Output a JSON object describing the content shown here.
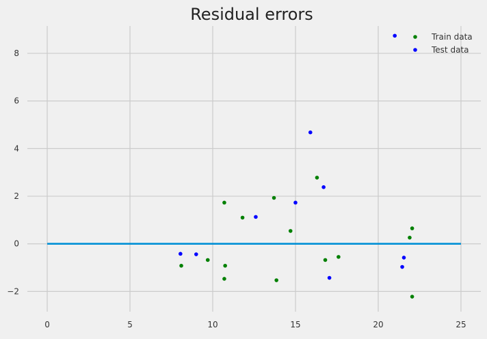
{
  "chart_data": {
    "type": "scatter",
    "title": "Residual errors",
    "xlabel": "",
    "ylabel": "",
    "xlim": [
      -1.2,
      26.2
    ],
    "ylim": [
      -2.85,
      9.15
    ],
    "xticks": [
      0,
      5,
      10,
      15,
      20,
      25
    ],
    "xtick_labels": [
      "0",
      "5",
      "10",
      "15",
      "20",
      "25"
    ],
    "yticks": [
      -2,
      0,
      2,
      4,
      6,
      8
    ],
    "ytick_labels": [
      "−2",
      "0",
      "2",
      "4",
      "6",
      "8"
    ],
    "grid": true,
    "legend_position": "top-right",
    "hline": {
      "y": 0,
      "x_from": 0,
      "x_to": 25,
      "color": "#008fd5"
    },
    "series": [
      {
        "name": "Train data",
        "color": "#008000",
        "points": [
          [
            8.1,
            -0.92
          ],
          [
            9.7,
            -0.68
          ],
          [
            10.7,
            1.73
          ],
          [
            10.75,
            -0.92
          ],
          [
            10.7,
            -1.47
          ],
          [
            11.8,
            1.1
          ],
          [
            13.7,
            1.93
          ],
          [
            13.85,
            -1.53
          ],
          [
            14.7,
            0.54
          ],
          [
            16.3,
            2.78
          ],
          [
            16.8,
            -0.68
          ],
          [
            17.6,
            -0.55
          ],
          [
            21.9,
            0.26
          ],
          [
            22.05,
            0.65
          ],
          [
            22.05,
            -2.22
          ]
        ]
      },
      {
        "name": "Test data",
        "color": "#0000ff",
        "points": [
          [
            8.05,
            -0.42
          ],
          [
            9.0,
            -0.44
          ],
          [
            12.6,
            1.13
          ],
          [
            15.0,
            1.73
          ],
          [
            15.9,
            4.68
          ],
          [
            16.7,
            2.38
          ],
          [
            17.05,
            -1.43
          ],
          [
            21.45,
            -0.97
          ],
          [
            21.55,
            -0.58
          ],
          [
            21.0,
            8.74
          ]
        ]
      }
    ]
  }
}
